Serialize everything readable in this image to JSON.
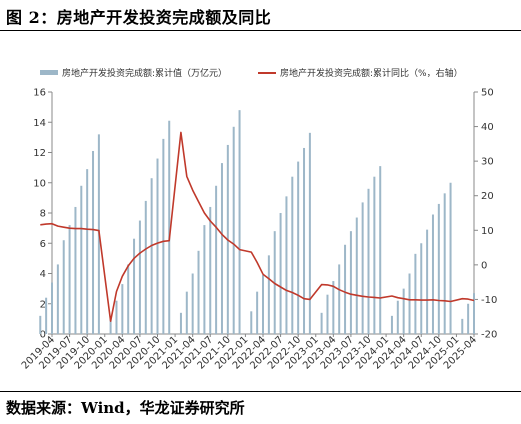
{
  "title": "图 2：房地产开发投资完成额及同比",
  "source": "数据来源：Wind，华龙证券研究所",
  "legend": {
    "bar": "房地产开发投资完成额:累计值（万亿元）",
    "line": "房地产开发投资完成额:累计同比（%，右轴）"
  },
  "colors": {
    "bar": "#9db7c8",
    "line": "#c0392b",
    "axis": "#888888"
  },
  "chart_data": {
    "type": "bar+line",
    "x_ticks": [
      "2019-04",
      "2019-07",
      "2019-10",
      "2020-01",
      "2020-04",
      "2020-07",
      "2020-10",
      "2021-01",
      "2021-04",
      "2021-07",
      "2021-10",
      "2022-01",
      "2022-04",
      "2022-07",
      "2022-10",
      "2023-01",
      "2023-04",
      "2023-07",
      "2023-10",
      "2024-01",
      "2024-04",
      "2024-07",
      "2024-10",
      "2025-01",
      "2025-04"
    ],
    "x": [
      "2019-02",
      "2019-03",
      "2019-04",
      "2019-05",
      "2019-06",
      "2019-07",
      "2019-08",
      "2019-09",
      "2019-10",
      "2019-11",
      "2019-12",
      "2020-02",
      "2020-03",
      "2020-04",
      "2020-05",
      "2020-06",
      "2020-07",
      "2020-08",
      "2020-09",
      "2020-10",
      "2020-11",
      "2020-12",
      "2021-02",
      "2021-03",
      "2021-04",
      "2021-05",
      "2021-06",
      "2021-07",
      "2021-08",
      "2021-09",
      "2021-10",
      "2021-11",
      "2021-12",
      "2022-02",
      "2022-03",
      "2022-04",
      "2022-05",
      "2022-06",
      "2022-07",
      "2022-08",
      "2022-09",
      "2022-10",
      "2022-11",
      "2022-12",
      "2023-02",
      "2023-03",
      "2023-04",
      "2023-05",
      "2023-06",
      "2023-07",
      "2023-08",
      "2023-09",
      "2023-10",
      "2023-11",
      "2023-12",
      "2024-02",
      "2024-03",
      "2024-04",
      "2024-05",
      "2024-06",
      "2024-07",
      "2024-08",
      "2024-09",
      "2024-10",
      "2024-11",
      "2024-12",
      "2025-02",
      "2025-03",
      "2025-04"
    ],
    "series": [
      {
        "name": "房地产开发投资完成额:累计值（万亿元）",
        "type": "bar",
        "axis": "left",
        "values": [
          1.2,
          2.4,
          3.4,
          4.6,
          6.2,
          7.2,
          8.4,
          9.8,
          10.9,
          12.1,
          13.2,
          1.0,
          2.2,
          3.3,
          4.6,
          6.3,
          7.5,
          8.8,
          10.3,
          11.6,
          12.9,
          14.1,
          1.4,
          2.8,
          4.0,
          5.5,
          7.2,
          8.4,
          9.8,
          11.3,
          12.5,
          13.7,
          14.8,
          1.5,
          2.8,
          3.9,
          5.2,
          6.8,
          8.0,
          9.1,
          10.4,
          11.4,
          12.3,
          13.3,
          1.4,
          2.6,
          3.5,
          4.6,
          5.9,
          6.8,
          7.7,
          8.7,
          9.6,
          10.4,
          11.1,
          1.2,
          2.2,
          3.0,
          4.0,
          5.3,
          6.0,
          6.9,
          7.9,
          8.6,
          9.3,
          10.0,
          1.0,
          2.0,
          2.7
        ],
        "ylim": [
          0,
          16
        ],
        "yticks": [
          0,
          2,
          4,
          6,
          8,
          10,
          12,
          14,
          16
        ]
      },
      {
        "name": "房地产开发投资完成额:累计同比（%，右轴）",
        "type": "line",
        "axis": "right",
        "values": [
          11.6,
          11.8,
          11.9,
          11.2,
          10.9,
          10.6,
          10.5,
          10.5,
          10.3,
          10.2,
          9.9,
          -16.3,
          -7.7,
          -3.3,
          -0.3,
          1.9,
          3.4,
          4.6,
          5.6,
          6.3,
          6.8,
          7.0,
          38.3,
          25.6,
          21.6,
          18.3,
          15.0,
          12.7,
          10.9,
          8.8,
          7.2,
          6.0,
          4.4,
          3.7,
          0.7,
          -2.7,
          -4.0,
          -5.4,
          -6.4,
          -7.4,
          -8.0,
          -8.8,
          -9.8,
          -10.0,
          -5.7,
          -5.8,
          -6.2,
          -7.2,
          -7.9,
          -8.5,
          -8.8,
          -9.1,
          -9.3,
          -9.4,
          -9.6,
          -9.0,
          -9.5,
          -9.8,
          -10.1,
          -10.1,
          -10.2,
          -10.2,
          -10.1,
          -10.3,
          -10.4,
          -10.6,
          -9.8,
          -9.9,
          -10.3
        ],
        "ylim": [
          -20,
          50
        ],
        "yticks": [
          -20,
          -10,
          0,
          10,
          20,
          30,
          40,
          50
        ]
      }
    ]
  }
}
